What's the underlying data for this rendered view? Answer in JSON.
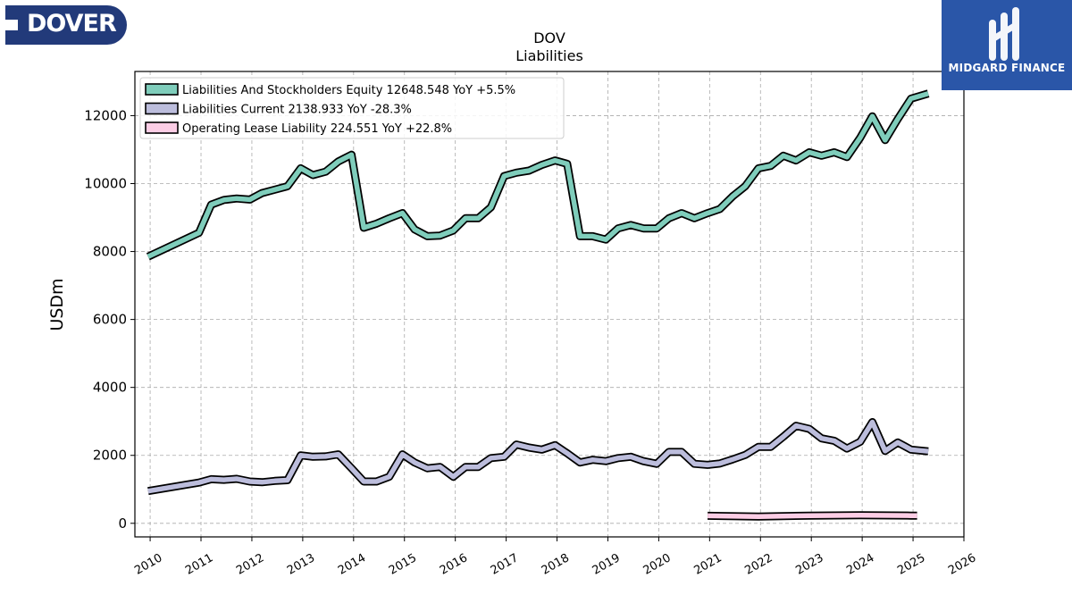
{
  "branding": {
    "left_logo_text": "DOVER",
    "left_logo_color": "#223a7a",
    "right_logo_text": "MIDGARD FINANCE",
    "right_logo_color": "#2a56a8"
  },
  "chart_data": {
    "type": "line",
    "title": "DOV",
    "subtitle": "Liabilities",
    "ylabel": "USDm",
    "xlabel": "",
    "xlim": [
      2009.7,
      2026.0
    ],
    "ylim": [
      -400,
      13300
    ],
    "yticks": [
      0,
      2000,
      4000,
      6000,
      8000,
      10000,
      12000
    ],
    "xticks": [
      2010,
      2011,
      2012,
      2013,
      2014,
      2015,
      2016,
      2017,
      2018,
      2019,
      2020,
      2021,
      2022,
      2023,
      2024,
      2025,
      2026
    ],
    "grid": true,
    "legend_position": "top-left",
    "series": [
      {
        "name": "Liabilities And Stockholders Equity  12648.548 YoY +5.5%",
        "color": "#7fcdbb",
        "points": [
          [
            2009.96,
            7850
          ],
          [
            2010.96,
            8550
          ],
          [
            2011.2,
            9380
          ],
          [
            2011.45,
            9520
          ],
          [
            2011.7,
            9560
          ],
          [
            2011.96,
            9530
          ],
          [
            2012.2,
            9720
          ],
          [
            2012.45,
            9820
          ],
          [
            2012.7,
            9920
          ],
          [
            2012.96,
            10450
          ],
          [
            2013.2,
            10250
          ],
          [
            2013.45,
            10350
          ],
          [
            2013.7,
            10650
          ],
          [
            2013.96,
            10850
          ],
          [
            2014.2,
            8700
          ],
          [
            2014.45,
            8820
          ],
          [
            2014.7,
            8980
          ],
          [
            2014.96,
            9130
          ],
          [
            2015.2,
            8650
          ],
          [
            2015.45,
            8450
          ],
          [
            2015.7,
            8470
          ],
          [
            2015.96,
            8620
          ],
          [
            2016.2,
            8980
          ],
          [
            2016.45,
            8980
          ],
          [
            2016.7,
            9300
          ],
          [
            2016.96,
            10220
          ],
          [
            2017.2,
            10320
          ],
          [
            2017.45,
            10380
          ],
          [
            2017.7,
            10550
          ],
          [
            2017.96,
            10680
          ],
          [
            2018.2,
            10580
          ],
          [
            2018.45,
            8450
          ],
          [
            2018.7,
            8450
          ],
          [
            2018.96,
            8350
          ],
          [
            2019.2,
            8680
          ],
          [
            2019.45,
            8780
          ],
          [
            2019.7,
            8680
          ],
          [
            2019.96,
            8680
          ],
          [
            2020.2,
            8980
          ],
          [
            2020.45,
            9130
          ],
          [
            2020.7,
            8980
          ],
          [
            2020.96,
            9130
          ],
          [
            2021.2,
            9250
          ],
          [
            2021.45,
            9620
          ],
          [
            2021.7,
            9920
          ],
          [
            2021.96,
            10450
          ],
          [
            2022.2,
            10520
          ],
          [
            2022.45,
            10820
          ],
          [
            2022.7,
            10680
          ],
          [
            2022.96,
            10920
          ],
          [
            2023.2,
            10820
          ],
          [
            2023.45,
            10920
          ],
          [
            2023.7,
            10780
          ],
          [
            2023.96,
            11350
          ],
          [
            2024.2,
            11980
          ],
          [
            2024.45,
            11280
          ],
          [
            2024.7,
            11900
          ],
          [
            2024.96,
            12500
          ],
          [
            2025.3,
            12650
          ]
        ]
      },
      {
        "name": "Liabilities Current  2138.933 YoY -28.3%",
        "color": "#bcbddc",
        "points": [
          [
            2009.96,
            950
          ],
          [
            2010.96,
            1200
          ],
          [
            2011.2,
            1300
          ],
          [
            2011.45,
            1280
          ],
          [
            2011.7,
            1310
          ],
          [
            2011.96,
            1230
          ],
          [
            2012.2,
            1210
          ],
          [
            2012.45,
            1250
          ],
          [
            2012.7,
            1270
          ],
          [
            2012.96,
            2000
          ],
          [
            2013.2,
            1960
          ],
          [
            2013.45,
            1970
          ],
          [
            2013.7,
            2030
          ],
          [
            2013.96,
            1620
          ],
          [
            2014.2,
            1230
          ],
          [
            2014.45,
            1230
          ],
          [
            2014.7,
            1370
          ],
          [
            2014.96,
            2030
          ],
          [
            2015.2,
            1790
          ],
          [
            2015.45,
            1620
          ],
          [
            2015.7,
            1660
          ],
          [
            2015.96,
            1370
          ],
          [
            2016.2,
            1660
          ],
          [
            2016.45,
            1660
          ],
          [
            2016.7,
            1920
          ],
          [
            2016.96,
            1960
          ],
          [
            2017.2,
            2320
          ],
          [
            2017.45,
            2230
          ],
          [
            2017.7,
            2170
          ],
          [
            2017.96,
            2300
          ],
          [
            2018.2,
            2060
          ],
          [
            2018.45,
            1790
          ],
          [
            2018.7,
            1870
          ],
          [
            2018.96,
            1830
          ],
          [
            2019.2,
            1920
          ],
          [
            2019.45,
            1960
          ],
          [
            2019.7,
            1830
          ],
          [
            2019.96,
            1750
          ],
          [
            2020.2,
            2100
          ],
          [
            2020.45,
            2100
          ],
          [
            2020.7,
            1750
          ],
          [
            2020.96,
            1720
          ],
          [
            2021.2,
            1760
          ],
          [
            2021.45,
            1880
          ],
          [
            2021.7,
            2010
          ],
          [
            2021.96,
            2250
          ],
          [
            2022.2,
            2250
          ],
          [
            2022.45,
            2550
          ],
          [
            2022.7,
            2870
          ],
          [
            2022.96,
            2780
          ],
          [
            2023.2,
            2500
          ],
          [
            2023.45,
            2430
          ],
          [
            2023.7,
            2200
          ],
          [
            2023.96,
            2400
          ],
          [
            2024.2,
            2980
          ],
          [
            2024.45,
            2130
          ],
          [
            2024.7,
            2380
          ],
          [
            2024.96,
            2170
          ],
          [
            2025.3,
            2120
          ]
        ]
      },
      {
        "name": "Operating Lease Liability  224.551 YoY +22.8%",
        "color": "#fccde5",
        "points": [
          [
            2020.96,
            220
          ],
          [
            2021.96,
            200
          ],
          [
            2022.96,
            225
          ],
          [
            2023.96,
            240
          ],
          [
            2024.96,
            225
          ],
          [
            2025.08,
            225
          ]
        ]
      }
    ]
  }
}
